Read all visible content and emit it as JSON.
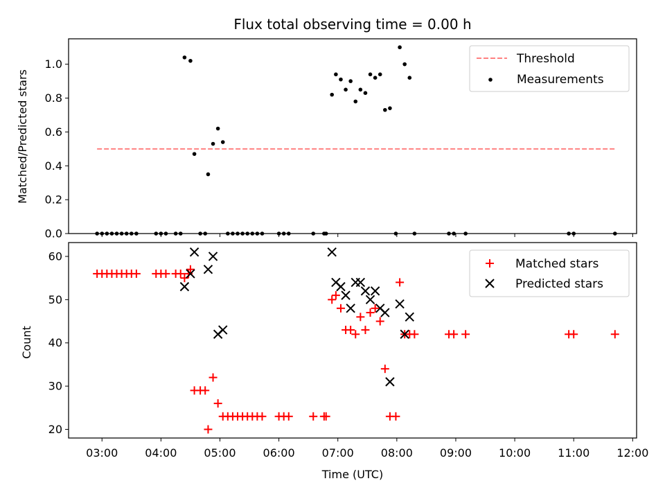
{
  "figure": {
    "title": "Flux total observing time = 0.00 h",
    "xlabel": "Time (UTC)"
  },
  "chart_data": [
    {
      "type": "scatter",
      "ylabel": "Matched/Predicted stars",
      "xlim": [
        "02:26",
        "12:04"
      ],
      "ylim": [
        0,
        1.15
      ],
      "yticks": [
        0.0,
        0.2,
        0.4,
        0.6,
        0.8,
        1.0
      ],
      "ytick_labels": [
        "0.0",
        "0.2",
        "0.4",
        "0.6",
        "0.8",
        "1.0"
      ],
      "grid": false,
      "legend_position": "top-right",
      "lines": [
        {
          "name": "Threshold",
          "color": "#ff8080",
          "style": "dashed",
          "x": [
            "02:55",
            "11:42"
          ],
          "y": [
            0.5,
            0.5
          ]
        }
      ],
      "series": [
        {
          "name": "Measurements",
          "color": "#000000",
          "marker": "dot",
          "points": [
            [
              "02:55",
              0.0
            ],
            [
              "03:00",
              0.0
            ],
            [
              "03:05",
              0.0
            ],
            [
              "03:10",
              0.0
            ],
            [
              "03:15",
              0.0
            ],
            [
              "03:20",
              0.0
            ],
            [
              "03:25",
              0.0
            ],
            [
              "03:30",
              0.0
            ],
            [
              "03:35",
              0.0
            ],
            [
              "03:55",
              0.0
            ],
            [
              "04:00",
              0.0
            ],
            [
              "04:05",
              0.0
            ],
            [
              "04:15",
              0.0
            ],
            [
              "04:20",
              0.0
            ],
            [
              "04:24",
              1.04
            ],
            [
              "04:30",
              1.02
            ],
            [
              "04:34",
              0.47
            ],
            [
              "04:40",
              0.0
            ],
            [
              "04:45",
              0.0
            ],
            [
              "04:48",
              0.35
            ],
            [
              "04:53",
              0.53
            ],
            [
              "04:58",
              0.62
            ],
            [
              "05:03",
              0.54
            ],
            [
              "05:08",
              0.0
            ],
            [
              "05:13",
              0.0
            ],
            [
              "05:18",
              0.0
            ],
            [
              "05:23",
              0.0
            ],
            [
              "05:28",
              0.0
            ],
            [
              "05:33",
              0.0
            ],
            [
              "05:38",
              0.0
            ],
            [
              "05:43",
              0.0
            ],
            [
              "06:00",
              0.0
            ],
            [
              "06:05",
              0.0
            ],
            [
              "06:10",
              0.0
            ],
            [
              "06:35",
              0.0
            ],
            [
              "06:46",
              0.0
            ],
            [
              "06:48",
              0.0
            ],
            [
              "06:54",
              0.82
            ],
            [
              "06:58",
              0.94
            ],
            [
              "07:03",
              0.91
            ],
            [
              "07:08",
              0.85
            ],
            [
              "07:13",
              0.9
            ],
            [
              "07:18",
              0.78
            ],
            [
              "07:23",
              0.85
            ],
            [
              "07:28",
              0.83
            ],
            [
              "07:33",
              0.94
            ],
            [
              "07:38",
              0.92
            ],
            [
              "07:43",
              0.94
            ],
            [
              "07:48",
              0.73
            ],
            [
              "07:53",
              0.74
            ],
            [
              "07:59",
              0.0
            ],
            [
              "08:03",
              1.1
            ],
            [
              "08:08",
              1.0
            ],
            [
              "08:13",
              0.92
            ],
            [
              "08:18",
              0.0
            ],
            [
              "08:53",
              0.0
            ],
            [
              "08:58",
              0.0
            ],
            [
              "09:10",
              0.0
            ],
            [
              "10:55",
              0.0
            ],
            [
              "11:00",
              0.0
            ],
            [
              "11:42",
              0.0
            ]
          ]
        }
      ]
    },
    {
      "type": "scatter",
      "ylabel": "Count",
      "xlabel": "Time (UTC)",
      "xlim": [
        "02:26",
        "12:04"
      ],
      "ylim": [
        18,
        63.2
      ],
      "yticks": [
        20,
        30,
        40,
        50,
        60
      ],
      "ytick_labels": [
        "20",
        "30",
        "40",
        "50",
        "60"
      ],
      "xticks": [
        "03:00",
        "04:00",
        "05:00",
        "06:00",
        "07:00",
        "08:00",
        "09:00",
        "10:00",
        "11:00",
        "12:00"
      ],
      "xtick_labels": [
        "03:00",
        "04:00",
        "05:00",
        "06:00",
        "07:00",
        "08:00",
        "09:00",
        "10:00",
        "11:00",
        "12:00"
      ],
      "grid": false,
      "legend_position": "top-right",
      "series": [
        {
          "name": "Matched stars",
          "color": "#ff0000",
          "marker": "plus",
          "points": [
            [
              "02:55",
              56
            ],
            [
              "03:00",
              56
            ],
            [
              "03:05",
              56
            ],
            [
              "03:10",
              56
            ],
            [
              "03:15",
              56
            ],
            [
              "03:20",
              56
            ],
            [
              "03:25",
              56
            ],
            [
              "03:30",
              56
            ],
            [
              "03:35",
              56
            ],
            [
              "03:55",
              56
            ],
            [
              "04:00",
              56
            ],
            [
              "04:05",
              56
            ],
            [
              "04:15",
              56
            ],
            [
              "04:20",
              56
            ],
            [
              "04:24",
              55
            ],
            [
              "04:28",
              56
            ],
            [
              "04:30",
              57
            ],
            [
              "04:34",
              29
            ],
            [
              "04:40",
              29
            ],
            [
              "04:45",
              29
            ],
            [
              "04:48",
              20
            ],
            [
              "04:53",
              32
            ],
            [
              "04:58",
              26
            ],
            [
              "05:03",
              23
            ],
            [
              "05:08",
              23
            ],
            [
              "05:13",
              23
            ],
            [
              "05:18",
              23
            ],
            [
              "05:23",
              23
            ],
            [
              "05:28",
              23
            ],
            [
              "05:33",
              23
            ],
            [
              "05:38",
              23
            ],
            [
              "05:43",
              23
            ],
            [
              "06:00",
              23
            ],
            [
              "06:05",
              23
            ],
            [
              "06:10",
              23
            ],
            [
              "06:35",
              23
            ],
            [
              "06:46",
              23
            ],
            [
              "06:48",
              23
            ],
            [
              "06:54",
              50
            ],
            [
              "06:58",
              51
            ],
            [
              "07:03",
              48
            ],
            [
              "07:08",
              43
            ],
            [
              "07:13",
              43
            ],
            [
              "07:18",
              42
            ],
            [
              "07:23",
              46
            ],
            [
              "07:28",
              43
            ],
            [
              "07:33",
              47
            ],
            [
              "07:38",
              48
            ],
            [
              "07:43",
              45
            ],
            [
              "07:48",
              34
            ],
            [
              "07:53",
              23
            ],
            [
              "07:59",
              23
            ],
            [
              "08:03",
              54
            ],
            [
              "08:08",
              42
            ],
            [
              "08:13",
              42
            ],
            [
              "08:18",
              42
            ],
            [
              "08:53",
              42
            ],
            [
              "08:58",
              42
            ],
            [
              "09:10",
              42
            ],
            [
              "10:55",
              42
            ],
            [
              "11:00",
              42
            ],
            [
              "11:42",
              42
            ]
          ]
        },
        {
          "name": "Predicted stars",
          "color": "#000000",
          "marker": "x",
          "points": [
            [
              "04:24",
              53
            ],
            [
              "04:30",
              56
            ],
            [
              "04:34",
              61
            ],
            [
              "04:48",
              57
            ],
            [
              "04:53",
              60
            ],
            [
              "04:58",
              42
            ],
            [
              "05:03",
              43
            ],
            [
              "06:54",
              61
            ],
            [
              "06:58",
              54
            ],
            [
              "07:03",
              53
            ],
            [
              "07:08",
              51
            ],
            [
              "07:13",
              48
            ],
            [
              "07:18",
              54
            ],
            [
              "07:23",
              54
            ],
            [
              "07:28",
              52
            ],
            [
              "07:33",
              50
            ],
            [
              "07:38",
              52
            ],
            [
              "07:43",
              48
            ],
            [
              "07:48",
              47
            ],
            [
              "07:53",
              31
            ],
            [
              "08:03",
              49
            ],
            [
              "08:08",
              42
            ],
            [
              "08:13",
              46
            ]
          ]
        }
      ]
    }
  ]
}
